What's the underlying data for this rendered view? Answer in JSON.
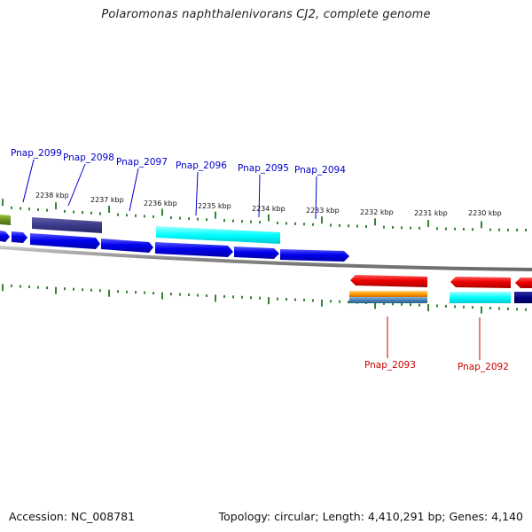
{
  "title": "Polaromonas naphthalenivorans CJ2, complete genome",
  "footer": {
    "accession": "Accession: NC_008781",
    "topology": "Topology: circular; Length: 4,410,291 bp; Genes: 4,140"
  },
  "colors": {
    "forward_label": "#0000cc",
    "reverse_label": "#cc0000",
    "tick": "#006600",
    "backbone": "#888888",
    "cds_forward": "#0000ee",
    "cds_reverse": "#ee0000"
  },
  "kbp_labels": [
    "2238 kbp",
    "2237 kbp",
    "2236 kbp",
    "2235 kbp",
    "2234 kbp",
    "2233 kbp",
    "2232 kbp",
    "2231 kbp",
    "2230 kbp"
  ],
  "forward_genes": [
    "Pnap_2099",
    "Pnap_2098",
    "Pnap_2097",
    "Pnap_2096",
    "Pnap_2095",
    "Pnap_2094"
  ],
  "reverse_genes": [
    "Pnap_2093",
    "Pnap_2092"
  ]
}
